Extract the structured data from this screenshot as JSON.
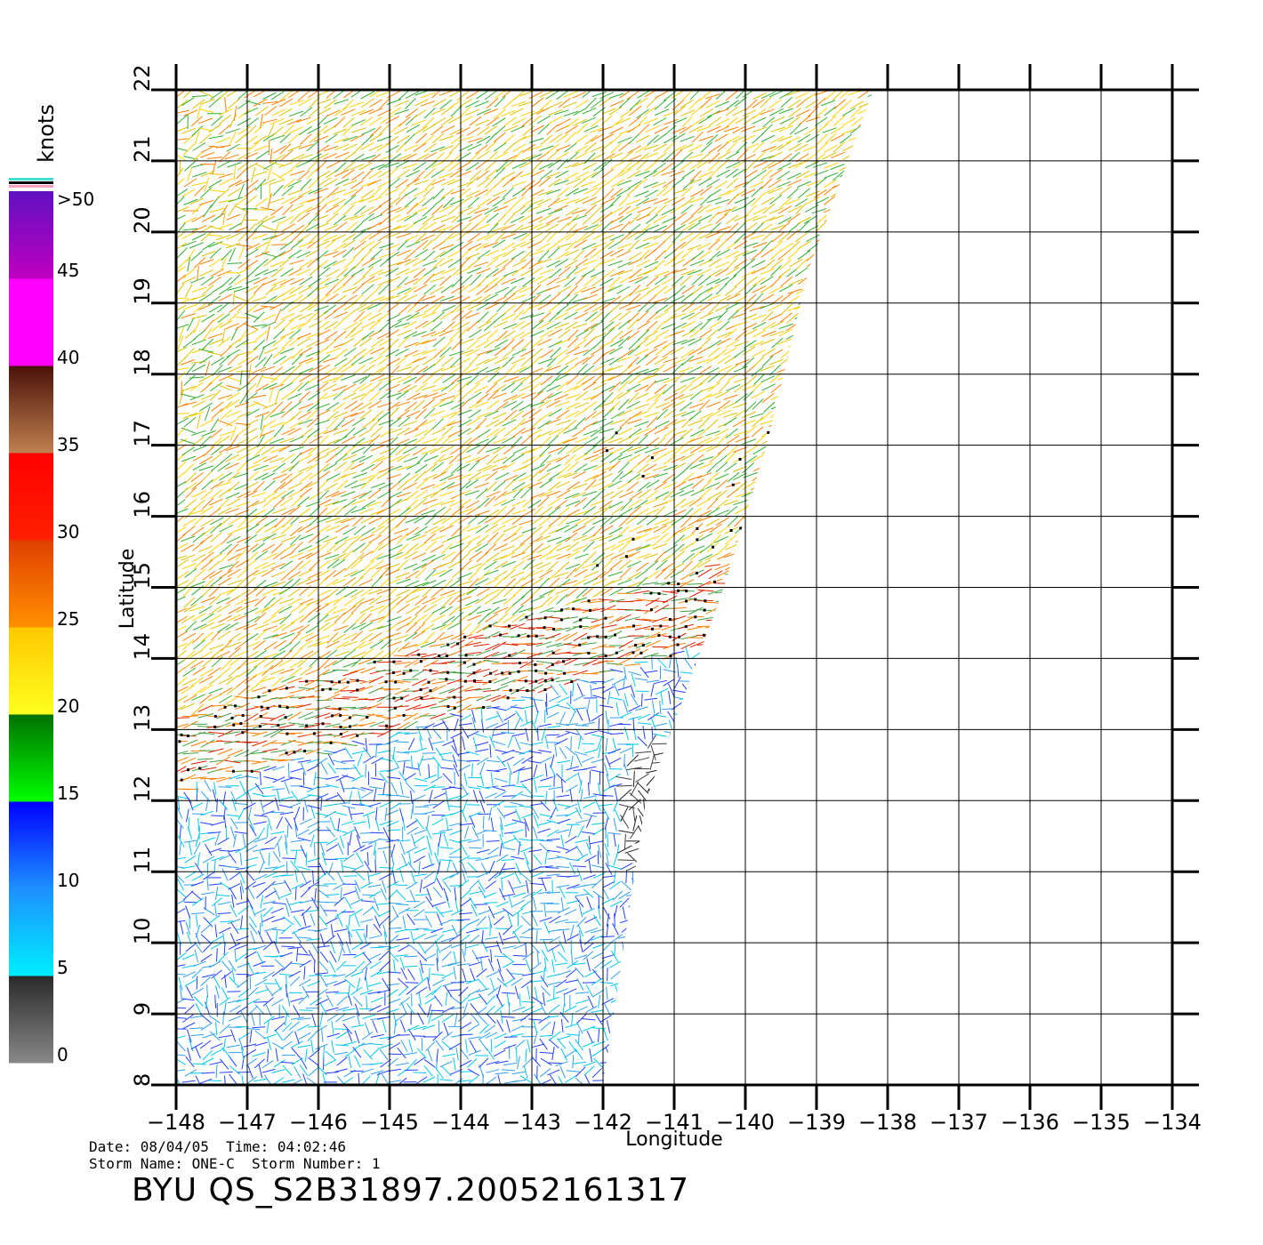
{
  "map": {
    "lon_min": -148,
    "lon_max": -134,
    "lat_min": 8,
    "lat_max": 22,
    "lon_ticks": [
      "-148",
      "-147",
      "-146",
      "-145",
      "-144",
      "-143",
      "-142",
      "-141",
      "-140",
      "-139",
      "-138",
      "-137",
      "-136",
      "-135",
      "-134"
    ],
    "lat_ticks": [
      "8",
      "9",
      "10",
      "11",
      "12",
      "13",
      "14",
      "15",
      "16",
      "17",
      "18",
      "19",
      "20",
      "21",
      "22"
    ],
    "xlabel": "Longitude",
    "ylabel": "Latitude",
    "swath_outline_lonlat": [
      [
        -148,
        22
      ],
      [
        -138.2,
        22
      ],
      [
        -139.1,
        19.5
      ],
      [
        -139.7,
        17.0
      ],
      [
        -140.3,
        15.0
      ],
      [
        -141.4,
        12.0
      ],
      [
        -141.7,
        10.0
      ],
      [
        -142.0,
        8.0
      ],
      [
        -148,
        8
      ]
    ],
    "rain_flag_color": "#000000"
  },
  "colorbar": {
    "unit": "knots",
    "over_label": ">50",
    "labels": [
      "0",
      "5",
      "10",
      "15",
      "20",
      "25",
      "30",
      "35",
      "40",
      "45"
    ],
    "bands": [
      {
        "range": "0-5",
        "top": "#2a2a2a",
        "bottom": "#888888"
      },
      {
        "range": "5-10",
        "top": "#1e90ff",
        "bottom": "#00eeff"
      },
      {
        "range": "10-15",
        "top": "#0000ff",
        "bottom": "#1e90ff"
      },
      {
        "range": "15-20",
        "top": "#007000",
        "bottom": "#00ff00"
      },
      {
        "range": "20-25",
        "top": "#ffc800",
        "bottom": "#ffff20"
      },
      {
        "range": "25-30",
        "top": "#e04000",
        "bottom": "#ff9000"
      },
      {
        "range": "30-35",
        "top": "#ff0000",
        "bottom": "#ff2000"
      },
      {
        "range": "35-40",
        "top": "#4a1208",
        "bottom": "#c08050"
      },
      {
        "range": "40-45",
        "top": "#ff00ff",
        "bottom": "#ff00ff"
      },
      {
        "range": "45-50",
        "top": "#6010c0",
        "bottom": "#c000c0"
      }
    ],
    "cap_colors": [
      "#40e0d0",
      "#000000",
      "#ffa0c0"
    ]
  },
  "wind_regions": [
    {
      "name": "trade-winds-north",
      "color_mix": [
        "#ffd000",
        "#30b030",
        "#ff8000",
        "#e0c000"
      ]
    },
    {
      "name": "shear-band",
      "color_mix": [
        "#e02000",
        "#ff8000",
        "#40a040"
      ]
    },
    {
      "name": "south-weak",
      "color_mix": [
        "#30a0f0",
        "#00c8f0",
        "#2040ff"
      ]
    },
    {
      "name": "calm-core",
      "color_mix": [
        "#202020",
        "#404040"
      ]
    }
  ],
  "meta": {
    "line1": "Date: 08/04/05  Time: 04:02:46",
    "line2": "Storm Name: ONE-C  Storm Number: 1"
  },
  "title": "BYU QS_S2B31897.20052161317"
}
